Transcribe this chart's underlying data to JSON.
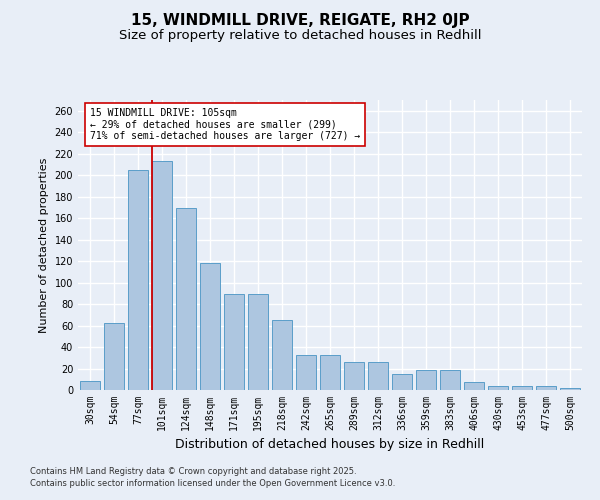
{
  "title": "15, WINDMILL DRIVE, REIGATE, RH2 0JP",
  "subtitle": "Size of property relative to detached houses in Redhill",
  "xlabel": "Distribution of detached houses by size in Redhill",
  "ylabel": "Number of detached properties",
  "categories": [
    "30sqm",
    "54sqm",
    "77sqm",
    "101sqm",
    "124sqm",
    "148sqm",
    "171sqm",
    "195sqm",
    "218sqm",
    "242sqm",
    "265sqm",
    "289sqm",
    "312sqm",
    "336sqm",
    "359sqm",
    "383sqm",
    "406sqm",
    "430sqm",
    "453sqm",
    "477sqm",
    "500sqm"
  ],
  "values": [
    8,
    62,
    205,
    213,
    169,
    118,
    89,
    89,
    65,
    33,
    33,
    26,
    26,
    15,
    19,
    19,
    7,
    4,
    4,
    4,
    2
  ],
  "bar_color": "#adc6e0",
  "bar_edge_color": "#5a9ec9",
  "ylim": [
    0,
    270
  ],
  "yticks": [
    0,
    20,
    40,
    60,
    80,
    100,
    120,
    140,
    160,
    180,
    200,
    220,
    240,
    260
  ],
  "vline_bin_index": 3,
  "vline_color": "#cc0000",
  "annotation_text": "15 WINDMILL DRIVE: 105sqm\n← 29% of detached houses are smaller (299)\n71% of semi-detached houses are larger (727) →",
  "annotation_box_color": "#ffffff",
  "annotation_box_edge": "#cc0000",
  "footer_line1": "Contains HM Land Registry data © Crown copyright and database right 2025.",
  "footer_line2": "Contains public sector information licensed under the Open Government Licence v3.0.",
  "background_color": "#e8eef7",
  "plot_background": "#e8eef7",
  "grid_color": "#ffffff",
  "title_fontsize": 11,
  "subtitle_fontsize": 9.5,
  "xlabel_fontsize": 9,
  "ylabel_fontsize": 8,
  "tick_fontsize": 7,
  "footer_fontsize": 6,
  "annotation_fontsize": 7
}
